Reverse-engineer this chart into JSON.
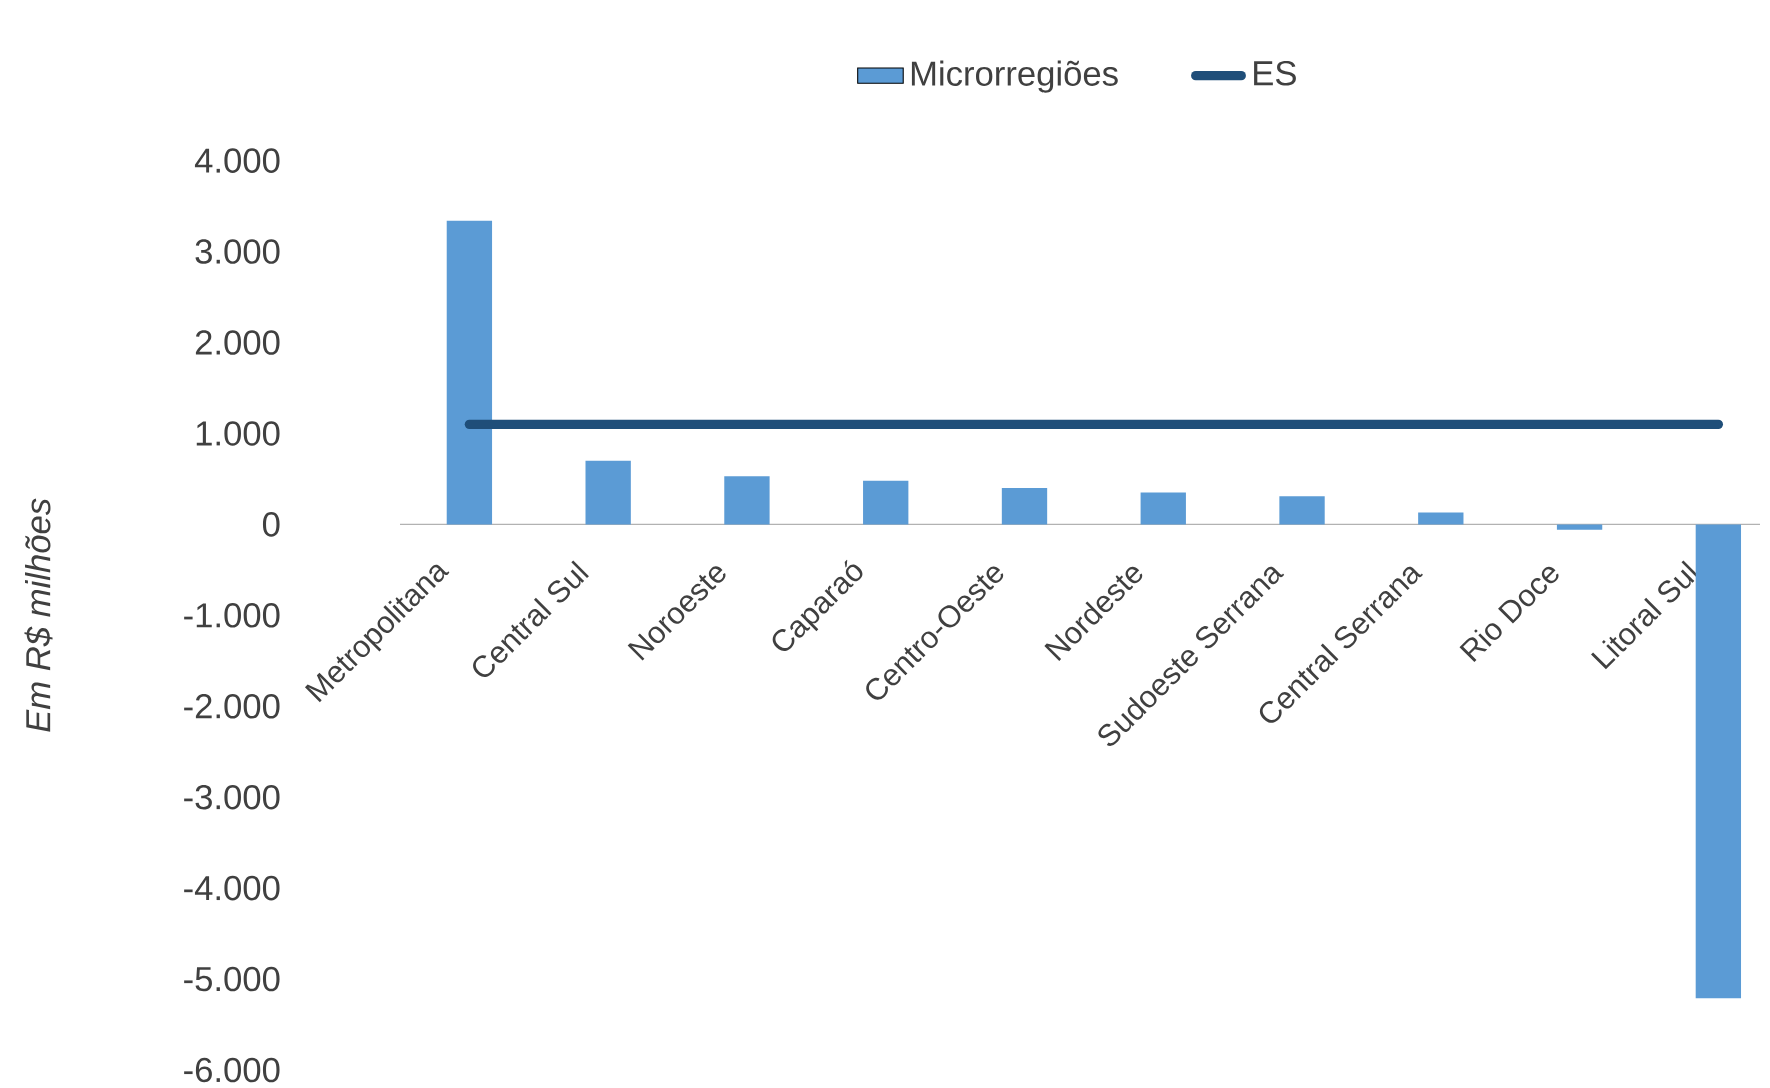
{
  "chart_data": {
    "type": "bar",
    "ylabel": "Em R$ milhões",
    "categories": [
      "Metropolitana",
      "Central Sul",
      "Noroeste",
      "Caparaó",
      "Centro-Oeste",
      "Nordeste",
      "Sudoeste Serrana",
      "Central Serrana",
      "Rio Doce",
      "Litoral Sul"
    ],
    "series": [
      {
        "name": "Microrregiões",
        "type": "bar",
        "color": "#5b9bd5",
        "values": [
          3340,
          700,
          530,
          480,
          400,
          350,
          310,
          130,
          -60,
          -5210
        ]
      },
      {
        "name": "ES",
        "type": "line",
        "color": "#1f4e79",
        "values": [
          1100,
          1100,
          1100,
          1100,
          1100,
          1100,
          1100,
          1100,
          1100,
          1100
        ]
      }
    ],
    "ylim": [
      -6000,
      4000
    ],
    "yticks": [
      {
        "value": -6000,
        "label": "-6.000"
      },
      {
        "value": -5000,
        "label": "-5.000"
      },
      {
        "value": -4000,
        "label": "-4.000"
      },
      {
        "value": -3000,
        "label": "-3.000"
      },
      {
        "value": -2000,
        "label": "-2.000"
      },
      {
        "value": -1000,
        "label": "-1.000"
      },
      {
        "value": 0,
        "label": "0"
      },
      {
        "value": 1000,
        "label": "1.000"
      },
      {
        "value": 2000,
        "label": "2.000"
      },
      {
        "value": 3000,
        "label": "3.000"
      },
      {
        "value": 4000,
        "label": "4.000"
      }
    ],
    "legend": "top"
  }
}
